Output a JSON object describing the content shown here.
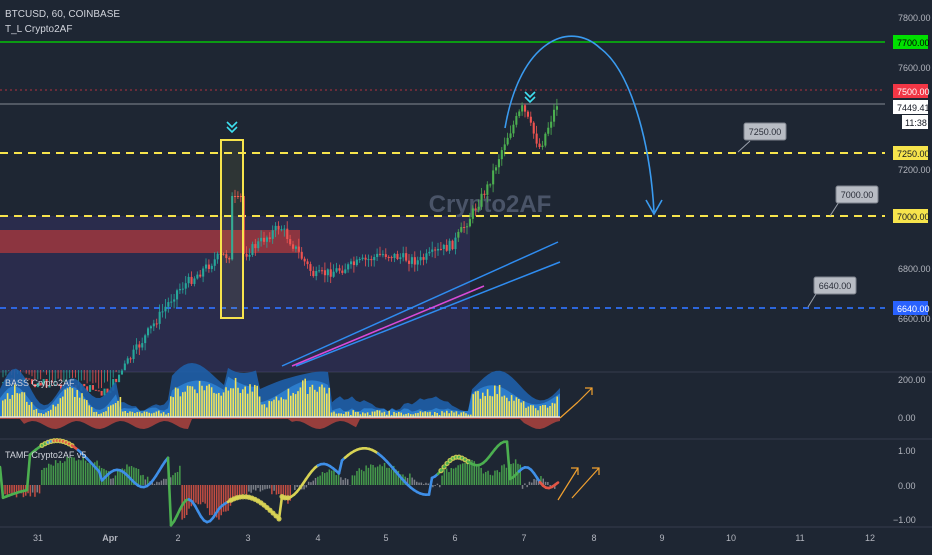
{
  "header": {
    "symbol_line": "BTCUSD, 60, COINBASE",
    "indicator_line": "T_L Crypto2AF"
  },
  "watermark": "Crypto2AF",
  "price_axis": {
    "ticks": [
      "7800.00",
      "7600.00",
      "7200.00",
      "6800.00",
      "6600.00"
    ],
    "level_badges": [
      {
        "label": "7700.00",
        "color": "#00e000",
        "text_color": "#000000"
      },
      {
        "label": "7500.00",
        "color": "#f23645",
        "text_color": "#ffffff"
      },
      {
        "label": "7449.41",
        "color": "#ffffff",
        "text_color": "#131722"
      },
      {
        "label": "11:38",
        "color": "#ffffff",
        "text_color": "#131722"
      },
      {
        "label": "7250.00",
        "color": "#f7e44c",
        "text_color": "#131722"
      },
      {
        "label": "7000.00",
        "color": "#f7e44c",
        "text_color": "#131722"
      },
      {
        "label": "6640.00",
        "color": "#2962ff",
        "text_color": "#ffffff"
      }
    ]
  },
  "callouts": [
    "7250.00",
    "7000.00",
    "6640.00"
  ],
  "panels": [
    {
      "name": "BASS Crypto2AF",
      "ticks": [
        "200.00",
        "0.00"
      ]
    },
    {
      "name": "TAMF Crypto2AF v5",
      "ticks": [
        "1.00",
        "0.00",
        "−1.00"
      ]
    }
  ],
  "time_axis": {
    "labels": [
      "31",
      "Apr",
      "2",
      "3",
      "4",
      "5",
      "6",
      "7",
      "8",
      "9",
      "10",
      "11",
      "12"
    ]
  },
  "colors": {
    "up": "#26a69a",
    "up_bright": "#4caf50",
    "down": "#ef5350",
    "level_yellow": "#f7e44c",
    "level_blue": "#2962ff",
    "projection": "#3a9bf0",
    "resistance_green": "#00e000"
  },
  "chart_data": {
    "type": "candlestick",
    "symbol": "BTCUSD",
    "interval": "60",
    "exchange": "COINBASE",
    "current_price": 7449.41,
    "horizontal_levels": [
      7700,
      7500,
      7250,
      7000,
      6640
    ],
    "x_range": [
      "Mar 31",
      "Apr 12"
    ],
    "close_path": [
      [
        "Mar 31",
        6340
      ],
      [
        "Apr 1",
        6300
      ],
      [
        "Apr 2",
        6700
      ],
      [
        "Apr 2 15:00",
        6840
      ],
      [
        "Apr 3",
        6850
      ],
      [
        "Apr 3 12:00",
        6960
      ],
      [
        "Apr 4",
        6760
      ],
      [
        "Apr 4 12:00",
        6800
      ],
      [
        "Apr 5",
        6850
      ],
      [
        "Apr 5 12:00",
        6820
      ],
      [
        "Apr 6",
        6890
      ],
      [
        "Apr 6 06:00",
        7000
      ],
      [
        "Apr 6 12:00",
        7120
      ],
      [
        "Apr 6 18:00",
        7300
      ],
      [
        "Apr 7",
        7430
      ],
      [
        "Apr 7 06:00",
        7270
      ],
      [
        "Apr 7 12:00",
        7449.41
      ]
    ]
  }
}
